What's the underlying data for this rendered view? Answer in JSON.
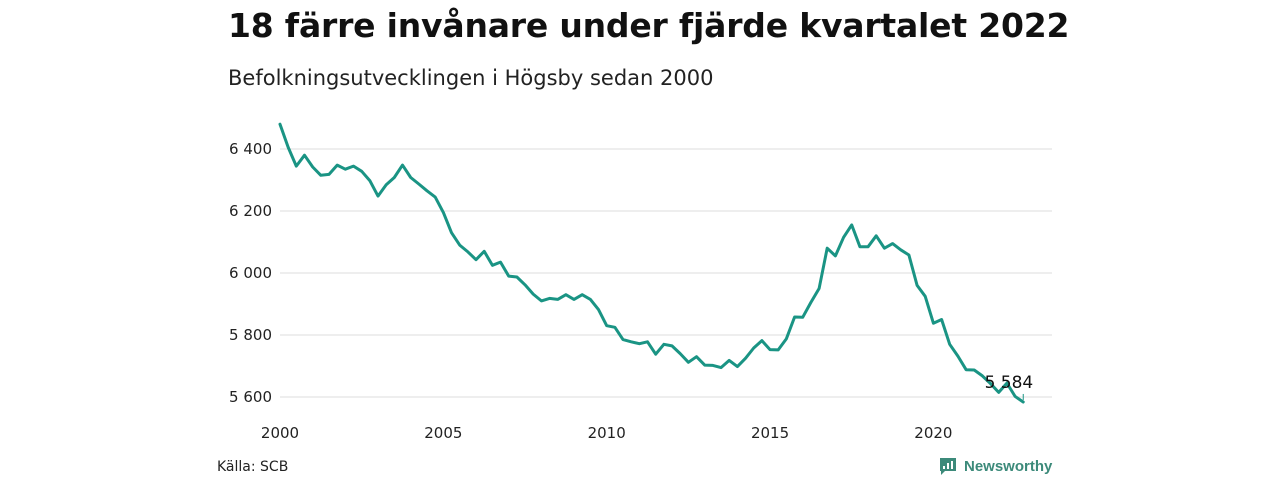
{
  "header": {
    "title": "18 färre invånare under fjärde kvartalet 2022",
    "subtitle": "Befolkningsutvecklingen i Högsby sedan 2000"
  },
  "footer": {
    "source": "Källa: SCB",
    "brand": "Newsworthy"
  },
  "colors": {
    "line": "#1a9484",
    "grid": "#dddddd",
    "brand": "#3c8a7a"
  },
  "chart_data": {
    "type": "line",
    "title": "18 färre invånare under fjärde kvartalet 2022",
    "subtitle": "Befolkningsutvecklingen i Högsby sedan 2000",
    "xlabel": "",
    "ylabel": "",
    "x_ticks": [
      "2000",
      "2005",
      "2010",
      "2015",
      "2020"
    ],
    "y_ticks": [
      "5 600",
      "5 800",
      "6 000",
      "6 200",
      "6 400"
    ],
    "y_tick_values": [
      5600,
      5800,
      6000,
      6200,
      6400
    ],
    "ylim": [
      5560,
      6480
    ],
    "xlim": [
      2000.0,
      2022.75
    ],
    "grid": true,
    "end_label": "5 584",
    "series": [
      {
        "x": [
          2000.0,
          2000.25,
          2000.5,
          2000.75,
          2001.0,
          2001.25,
          2001.5,
          2001.75,
          2002.0,
          2002.25,
          2002.5,
          2002.75,
          2003.0,
          2003.25,
          2003.5,
          2003.75,
          2004.0,
          2004.25,
          2004.5,
          2004.75,
          2005.0,
          2005.25,
          2005.5,
          2005.75,
          2006.0,
          2006.25,
          2006.5,
          2006.75,
          2007.0,
          2007.25,
          2007.5,
          2007.75,
          2008.0,
          2008.25,
          2008.5,
          2008.75,
          2009.0,
          2009.25,
          2009.5,
          2009.75,
          2010.0,
          2010.25,
          2010.5,
          2010.75,
          2011.0,
          2011.25,
          2011.5,
          2011.75,
          2012.0,
          2012.25,
          2012.5,
          2012.75,
          2013.0,
          2013.25,
          2013.5,
          2013.75,
          2014.0,
          2014.25,
          2014.5,
          2014.75,
          2015.0,
          2015.25,
          2015.5,
          2015.75,
          2016.0,
          2016.25,
          2016.5,
          2016.75,
          2017.0,
          2017.25,
          2017.5,
          2017.75,
          2018.0,
          2018.25,
          2018.5,
          2018.75,
          2019.0,
          2019.25,
          2019.5,
          2019.75,
          2020.0,
          2020.25,
          2020.5,
          2020.75,
          2021.0,
          2021.25,
          2021.5,
          2021.75,
          2022.0,
          2022.25,
          2022.5,
          2022.75
        ],
        "values": [
          6480,
          6405,
          6345,
          6380,
          6342,
          6315,
          6318,
          6348,
          6335,
          6345,
          6328,
          6298,
          6248,
          6285,
          6308,
          6348,
          6308,
          6287,
          6265,
          6245,
          6195,
          6130,
          6090,
          6068,
          6043,
          6070,
          6025,
          6035,
          5990,
          5987,
          5962,
          5932,
          5910,
          5918,
          5915,
          5930,
          5915,
          5930,
          5915,
          5882,
          5830,
          5825,
          5785,
          5778,
          5772,
          5778,
          5738,
          5770,
          5765,
          5740,
          5712,
          5730,
          5703,
          5702,
          5695,
          5718,
          5698,
          5725,
          5758,
          5782,
          5753,
          5752,
          5788,
          5858,
          5857,
          5905,
          5950,
          6080,
          6055,
          6115,
          6155,
          6085,
          6085,
          6120,
          6080,
          6095,
          6075,
          6058,
          5960,
          5925,
          5838,
          5850,
          5770,
          5732,
          5688,
          5687,
          5668,
          5643,
          5615,
          5645,
          5602,
          5584
        ]
      }
    ]
  }
}
